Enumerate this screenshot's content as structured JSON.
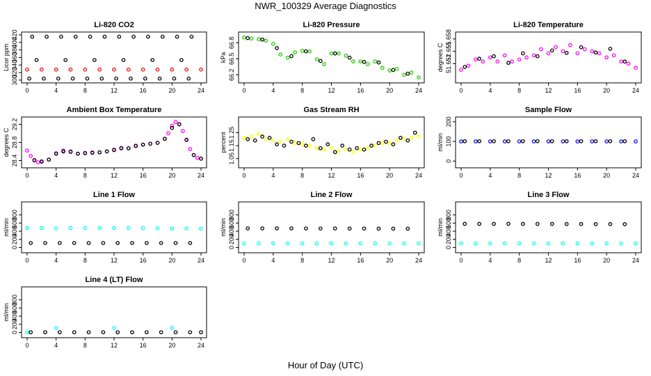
{
  "title": "NWR_100329  Average Diagnostics",
  "xlabel": "Hour of Day (UTC)",
  "colors": {
    "black": "#000000",
    "red": "#ff0000",
    "green": "#22cc00",
    "magenta": "#ff00ff",
    "yellow": "#ffff00",
    "cyan": "#00ffff",
    "blue": "#0000ff"
  },
  "chart_data": [
    {
      "type": "scatter",
      "title": "Li-820 CO2",
      "ylabel": "Licor ppm",
      "xlim": [
        0,
        24
      ],
      "ylim": [
        300,
        420
      ],
      "xticks": [
        0,
        4,
        8,
        12,
        16,
        20,
        24
      ],
      "yticks": [
        300,
        320,
        340,
        360,
        380,
        400,
        420
      ],
      "series": [
        {
          "color": "#000000",
          "x": [
            0.3,
            2.3,
            4.3,
            6.3,
            8.3,
            10.3,
            12.3,
            14.3,
            16.3,
            18.3,
            20.3,
            22.3,
            1.3,
            5.3,
            9.3,
            13.3,
            17.3,
            21.3,
            0.7,
            2.7,
            4.7,
            6.7,
            8.7,
            10.7,
            12.7,
            14.7,
            16.7,
            18.7,
            20.7,
            22.7
          ],
          "y": [
            304,
            304,
            304,
            304,
            304,
            304,
            304,
            304,
            304,
            304,
            304,
            304,
            353,
            353,
            353,
            353,
            353,
            353,
            415,
            415,
            415,
            415,
            415,
            415,
            415,
            415,
            415,
            415,
            415,
            415
          ]
        },
        {
          "color": "#ff0000",
          "x": [
            0,
            2,
            4,
            6,
            8,
            10,
            12,
            14,
            16,
            18,
            20,
            22,
            24
          ],
          "y": [
            328,
            328,
            328,
            328,
            328,
            328,
            328,
            328,
            328,
            328,
            328,
            328,
            328
          ]
        }
      ]
    },
    {
      "type": "scatter",
      "title": "Li-820 Pressure",
      "ylabel": "kPa",
      "xlim": [
        0,
        24
      ],
      "ylim": [
        66.1,
        66.95
      ],
      "xticks": [
        0,
        4,
        8,
        12,
        16,
        20,
        24
      ],
      "yticks": [
        66.2,
        66.5,
        66.8
      ],
      "series": [
        {
          "color": "#22cc00",
          "x": [
            0,
            1,
            2,
            3,
            4,
            5,
            6,
            7,
            8,
            9,
            10,
            11,
            12,
            13,
            14,
            15,
            16,
            17,
            18,
            19,
            20,
            21,
            22,
            23,
            24
          ],
          "y": [
            66.9,
            66.88,
            66.87,
            66.84,
            66.78,
            66.58,
            66.52,
            66.62,
            66.65,
            66.64,
            66.49,
            66.4,
            66.6,
            66.6,
            66.56,
            66.45,
            66.45,
            66.4,
            66.45,
            66.33,
            66.28,
            66.31,
            66.2,
            66.24,
            66.15
          ]
        },
        {
          "color": "#000000",
          "x": [
            0.5,
            2.5,
            4.5,
            6.5,
            8.5,
            10.5,
            12.5,
            14.5,
            16.5,
            18.5,
            20.5,
            22.5
          ],
          "y": [
            66.89,
            66.86,
            66.7,
            66.55,
            66.64,
            66.46,
            66.6,
            66.52,
            66.44,
            66.43,
            66.29,
            66.22
          ]
        }
      ]
    },
    {
      "type": "scatter",
      "title": "Li-820 Temperature",
      "ylabel": "degrees C",
      "xlim": [
        0,
        24
      ],
      "ylim": [
        51.648,
        51.659
      ],
      "xticks": [
        0,
        4,
        8,
        12,
        16,
        20,
        24
      ],
      "yticks": [
        51.652,
        51.655,
        51.658
      ],
      "series": [
        {
          "color": "#ff00ff",
          "x": [
            0,
            1,
            2,
            3,
            4,
            5,
            6,
            7,
            8,
            9,
            10,
            11,
            12,
            13,
            14,
            15,
            16,
            17,
            18,
            19,
            20,
            21,
            22,
            23,
            24
          ],
          "y": [
            51.6505,
            51.6515,
            51.653,
            51.6525,
            51.6535,
            51.6525,
            51.654,
            51.6525,
            51.653,
            51.6535,
            51.654,
            51.6555,
            51.6545,
            51.656,
            51.655,
            51.6565,
            51.6545,
            51.6555,
            51.655,
            51.6545,
            51.6535,
            51.654,
            51.6525,
            51.652,
            51.651
          ]
        },
        {
          "color": "#000000",
          "x": [
            0.5,
            2.5,
            4.5,
            6.5,
            8.5,
            10.5,
            12.5,
            14.5,
            16.5,
            18.5,
            20.5,
            22.5
          ],
          "y": [
            51.6512,
            51.6532,
            51.6538,
            51.6522,
            51.6545,
            51.6538,
            51.6552,
            51.6546,
            51.656,
            51.6547,
            51.6556,
            51.6525
          ]
        }
      ]
    },
    {
      "type": "scatter",
      "title": "Ambient Box Temperature",
      "ylabel": "degrees C",
      "xlim": [
        0,
        24
      ],
      "ylim": [
        28.3,
        29.3
      ],
      "xticks": [
        0,
        4,
        8,
        12,
        16,
        20,
        24
      ],
      "yticks": [
        28.4,
        28.8,
        29.2
      ],
      "series": [
        {
          "color": "#ff00ff",
          "x": [
            0,
            0.5,
            1,
            1.5,
            2,
            3,
            4,
            5,
            6,
            7,
            8,
            9,
            10,
            11,
            12,
            13,
            14,
            15,
            16,
            17,
            18,
            19,
            19.5,
            20,
            20.5,
            21,
            21.5,
            22,
            22.5,
            23,
            23.5,
            24
          ],
          "y": [
            28.62,
            28.5,
            28.4,
            28.36,
            28.37,
            28.42,
            28.56,
            28.62,
            28.6,
            28.55,
            28.57,
            28.58,
            28.58,
            28.6,
            28.64,
            28.68,
            28.67,
            28.73,
            28.75,
            28.77,
            28.79,
            28.88,
            29.0,
            29.17,
            29.25,
            29.2,
            29.05,
            28.85,
            28.65,
            28.52,
            28.46,
            28.44
          ]
        },
        {
          "color": "#000000",
          "x": [
            1,
            2,
            3,
            4,
            5,
            6,
            7,
            8,
            9,
            10,
            11,
            12,
            13,
            14,
            15,
            16,
            17,
            18,
            19,
            20,
            21,
            22,
            23,
            24
          ],
          "y": [
            28.41,
            28.38,
            28.42,
            28.55,
            28.6,
            28.59,
            28.55,
            28.56,
            28.57,
            28.58,
            28.6,
            28.63,
            28.67,
            28.67,
            28.72,
            28.75,
            28.77,
            28.79,
            28.88,
            29.12,
            29.2,
            28.86,
            28.52,
            28.44
          ]
        }
      ]
    },
    {
      "type": "scatter",
      "title": "Gas Stream RH",
      "ylabel": "percent",
      "xlim": [
        0,
        24
      ],
      "ylim": [
        1.0,
        1.35
      ],
      "xticks": [
        0,
        4,
        8,
        12,
        16,
        20,
        24
      ],
      "yticks": [
        1.05,
        1.15,
        1.25
      ],
      "series": [
        {
          "color": "#ffff00",
          "x": [
            0,
            1,
            2,
            3,
            4,
            5,
            6,
            7,
            8,
            9,
            10,
            11,
            12,
            13,
            14,
            15,
            16,
            17,
            18,
            19,
            20,
            21,
            22,
            23,
            24
          ],
          "y": [
            1.21,
            1.22,
            1.24,
            1.2,
            1.19,
            1.18,
            1.2,
            1.17,
            1.16,
            1.15,
            1.13,
            1.12,
            1.13,
            1.11,
            1.12,
            1.1,
            1.12,
            1.13,
            1.15,
            1.17,
            1.17,
            1.19,
            1.2,
            1.21,
            1.22
          ]
        },
        {
          "color": "#000000",
          "x": [
            0.5,
            1.5,
            2.5,
            3.5,
            4.5,
            5.5,
            6.5,
            7.5,
            8.5,
            9.5,
            10.5,
            11.5,
            12.5,
            13.5,
            14.5,
            15.5,
            16.5,
            17.5,
            18.5,
            19.5,
            20.5,
            21.5,
            22.5,
            23.5
          ],
          "y": [
            1.2,
            1.19,
            1.22,
            1.21,
            1.16,
            1.15,
            1.18,
            1.17,
            1.15,
            1.2,
            1.13,
            1.16,
            1.1,
            1.15,
            1.12,
            1.13,
            1.12,
            1.15,
            1.17,
            1.18,
            1.16,
            1.21,
            1.19,
            1.25
          ]
        }
      ]
    },
    {
      "type": "scatter",
      "title": "Sample Flow",
      "ylabel": "ml/min",
      "xlim": [
        0,
        24
      ],
      "ylim": [
        -20,
        210
      ],
      "xticks": [
        0,
        4,
        8,
        12,
        16,
        20,
        24
      ],
      "yticks": [
        0,
        100,
        200
      ],
      "series": [
        {
          "color": "#0000ff",
          "x": [
            0,
            2,
            4,
            6,
            8,
            10,
            12,
            14,
            16,
            18,
            20,
            22,
            24
          ],
          "y": [
            100,
            100,
            100,
            100,
            100,
            100,
            100,
            100,
            100,
            100,
            100,
            100,
            100
          ]
        },
        {
          "color": "#000000",
          "x": [
            0.5,
            2.5,
            4.5,
            6.5,
            8.5,
            10.5,
            12.5,
            14.5,
            16.5,
            18.5,
            20.5,
            22.5
          ],
          "y": [
            101,
            101,
            101,
            101,
            101,
            101,
            101,
            101,
            101,
            101,
            101,
            101
          ]
        }
      ]
    },
    {
      "type": "scatter",
      "title": "Line 1 Flow",
      "ylabel": "ml/min",
      "xlim": [
        0,
        24
      ],
      "ylim": [
        -60,
        1050
      ],
      "xticks": [
        0,
        4,
        8,
        12,
        16,
        20,
        24
      ],
      "yticks": [
        0,
        200,
        400,
        600,
        800
      ],
      "series": [
        {
          "color": "#00ffff",
          "x": [
            0,
            2,
            4,
            6,
            8,
            10,
            12,
            14,
            16,
            18,
            20,
            22,
            24
          ],
          "y": [
            480,
            480,
            470,
            480,
            478,
            476,
            478,
            476,
            474,
            472,
            466,
            468,
            462
          ]
        },
        {
          "color": "#000000",
          "x": [
            0.5,
            2.5,
            4.5,
            6.5,
            8.5,
            10.5,
            12.5,
            14.5,
            16.5,
            18.5,
            20.5,
            22.5
          ],
          "y": [
            110,
            110,
            110,
            110,
            110,
            110,
            110,
            110,
            110,
            110,
            110,
            110
          ]
        }
      ]
    },
    {
      "type": "scatter",
      "title": "Line 2 Flow",
      "ylabel": "ml/min",
      "xlim": [
        0,
        24
      ],
      "ylim": [
        -60,
        1050
      ],
      "xticks": [
        0,
        4,
        8,
        12,
        16,
        20,
        24
      ],
      "yticks": [
        0,
        200,
        400,
        600,
        800
      ],
      "series": [
        {
          "color": "#00ffff",
          "x": [
            0,
            2,
            4,
            6,
            8,
            10,
            12,
            14,
            16,
            18,
            20,
            22,
            24
          ],
          "y": [
            100,
            100,
            100,
            100,
            100,
            100,
            100,
            100,
            100,
            100,
            100,
            100,
            100
          ]
        },
        {
          "color": "#000000",
          "x": [
            0.5,
            2.5,
            4.5,
            6.5,
            8.5,
            10.5,
            12.5,
            14.5,
            16.5,
            18.5,
            20.5,
            22.5
          ],
          "y": [
            470,
            470,
            470,
            470,
            468,
            468,
            468,
            466,
            466,
            464,
            464,
            462
          ]
        }
      ]
    },
    {
      "type": "scatter",
      "title": "Line 3 Flow",
      "ylabel": "ml/min",
      "xlim": [
        0,
        24
      ],
      "ylim": [
        -60,
        1050
      ],
      "xticks": [
        0,
        4,
        8,
        12,
        16,
        20,
        24
      ],
      "yticks": [
        0,
        200,
        400,
        600,
        800
      ],
      "series": [
        {
          "color": "#00ffff",
          "x": [
            0,
            2,
            4,
            6,
            8,
            10,
            12,
            14,
            16,
            18,
            20,
            22,
            24
          ],
          "y": [
            100,
            100,
            100,
            100,
            100,
            100,
            100,
            100,
            100,
            100,
            100,
            100,
            100
          ]
        },
        {
          "color": "#000000",
          "x": [
            0.5,
            2.5,
            4.5,
            6.5,
            8.5,
            10.5,
            12.5,
            14.5,
            16.5,
            18.5,
            20.5,
            22.5
          ],
          "y": [
            580,
            580,
            580,
            580,
            578,
            578,
            578,
            576,
            576,
            574,
            574,
            572
          ]
        }
      ]
    },
    {
      "type": "scatter",
      "title": "Line 4 (LT) Flow",
      "ylabel": "ml/min",
      "xlim": [
        0,
        24
      ],
      "ylim": [
        -60,
        1050
      ],
      "xticks": [
        0,
        4,
        8,
        12,
        16,
        20,
        24
      ],
      "yticks": [
        0,
        200,
        400,
        600,
        800
      ],
      "series": [
        {
          "color": "#00ffff",
          "x": [
            0,
            4,
            12,
            20
          ],
          "y": [
            5,
            110,
            110,
            110
          ]
        },
        {
          "color": "#000000",
          "x": [
            0.5,
            2.5,
            4.5,
            6.5,
            8.5,
            10.5,
            12.5,
            14.5,
            16.5,
            18.5,
            20.5,
            22.5,
            24
          ],
          "y": [
            5,
            5,
            5,
            5,
            5,
            5,
            5,
            5,
            5,
            5,
            5,
            5,
            5
          ]
        }
      ]
    }
  ]
}
